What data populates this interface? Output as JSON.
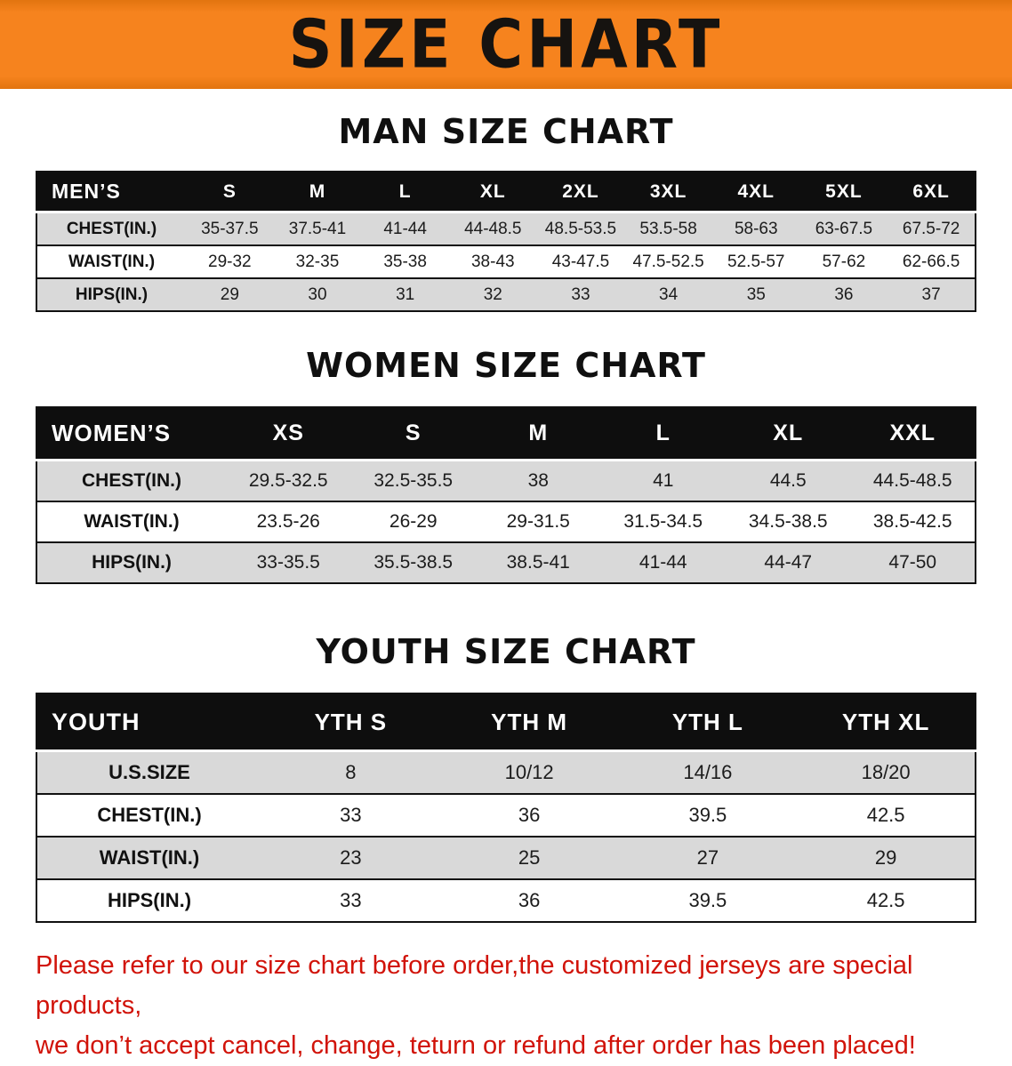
{
  "banner": {
    "title": "SIZE CHART"
  },
  "sections": [
    {
      "heading": "MAN SIZE CHART",
      "table": {
        "header": [
          "MEN’S",
          "S",
          "M",
          "L",
          "XL",
          "2XL",
          "3XL",
          "4XL",
          "5XL",
          "6XL"
        ],
        "rows": [
          [
            "CHEST(IN.)",
            "35-37.5",
            "37.5-41",
            "41-44",
            "44-48.5",
            "48.5-53.5",
            "53.5-58",
            "58-63",
            "63-67.5",
            "67.5-72"
          ],
          [
            "WAIST(IN.)",
            "29-32",
            "32-35",
            "35-38",
            "38-43",
            "43-47.5",
            "47.5-52.5",
            "52.5-57",
            "57-62",
            "62-66.5"
          ],
          [
            "HIPS(IN.)",
            "29",
            "30",
            "31",
            "32",
            "33",
            "34",
            "35",
            "36",
            "37"
          ]
        ]
      }
    },
    {
      "heading": "WOMEN SIZE CHART",
      "table": {
        "header": [
          "WOMEN’S",
          "XS",
          "S",
          "M",
          "L",
          "XL",
          "XXL"
        ],
        "rows": [
          [
            "CHEST(IN.)",
            "29.5-32.5",
            "32.5-35.5",
            "38",
            "41",
            "44.5",
            "44.5-48.5"
          ],
          [
            "WAIST(IN.)",
            "23.5-26",
            "26-29",
            "29-31.5",
            "31.5-34.5",
            "34.5-38.5",
            "38.5-42.5"
          ],
          [
            "HIPS(IN.)",
            "33-35.5",
            "35.5-38.5",
            "38.5-41",
            "41-44",
            "44-47",
            "47-50"
          ]
        ]
      }
    },
    {
      "heading": "YOUTH SIZE CHART",
      "table": {
        "header": [
          "YOUTH",
          "YTH S",
          "YTH M",
          "YTH L",
          "YTH XL"
        ],
        "rows": [
          [
            "U.S.SIZE",
            "8",
            "10/12",
            "14/16",
            "18/20"
          ],
          [
            "CHEST(IN.)",
            "33",
            "36",
            "39.5",
            "42.5"
          ],
          [
            "WAIST(IN.)",
            "23",
            "25",
            "27",
            "29"
          ],
          [
            "HIPS(IN.)",
            "33",
            "36",
            "39.5",
            "42.5"
          ]
        ]
      }
    }
  ],
  "disclaimer": {
    "line1": "Please refer to our size chart before order,the customized jerseys are special products,",
    "line2": "we don’t accept cancel, change, teturn or refund after order has been placed!"
  },
  "colors": {
    "banner_orange": "#f6831e",
    "banner_orange_dark": "#e2740f",
    "title_black": "#161310",
    "header_black": "#0e0e0e",
    "stripe_gray": "#d9d9d9",
    "disclaimer_red": "#d11309"
  }
}
